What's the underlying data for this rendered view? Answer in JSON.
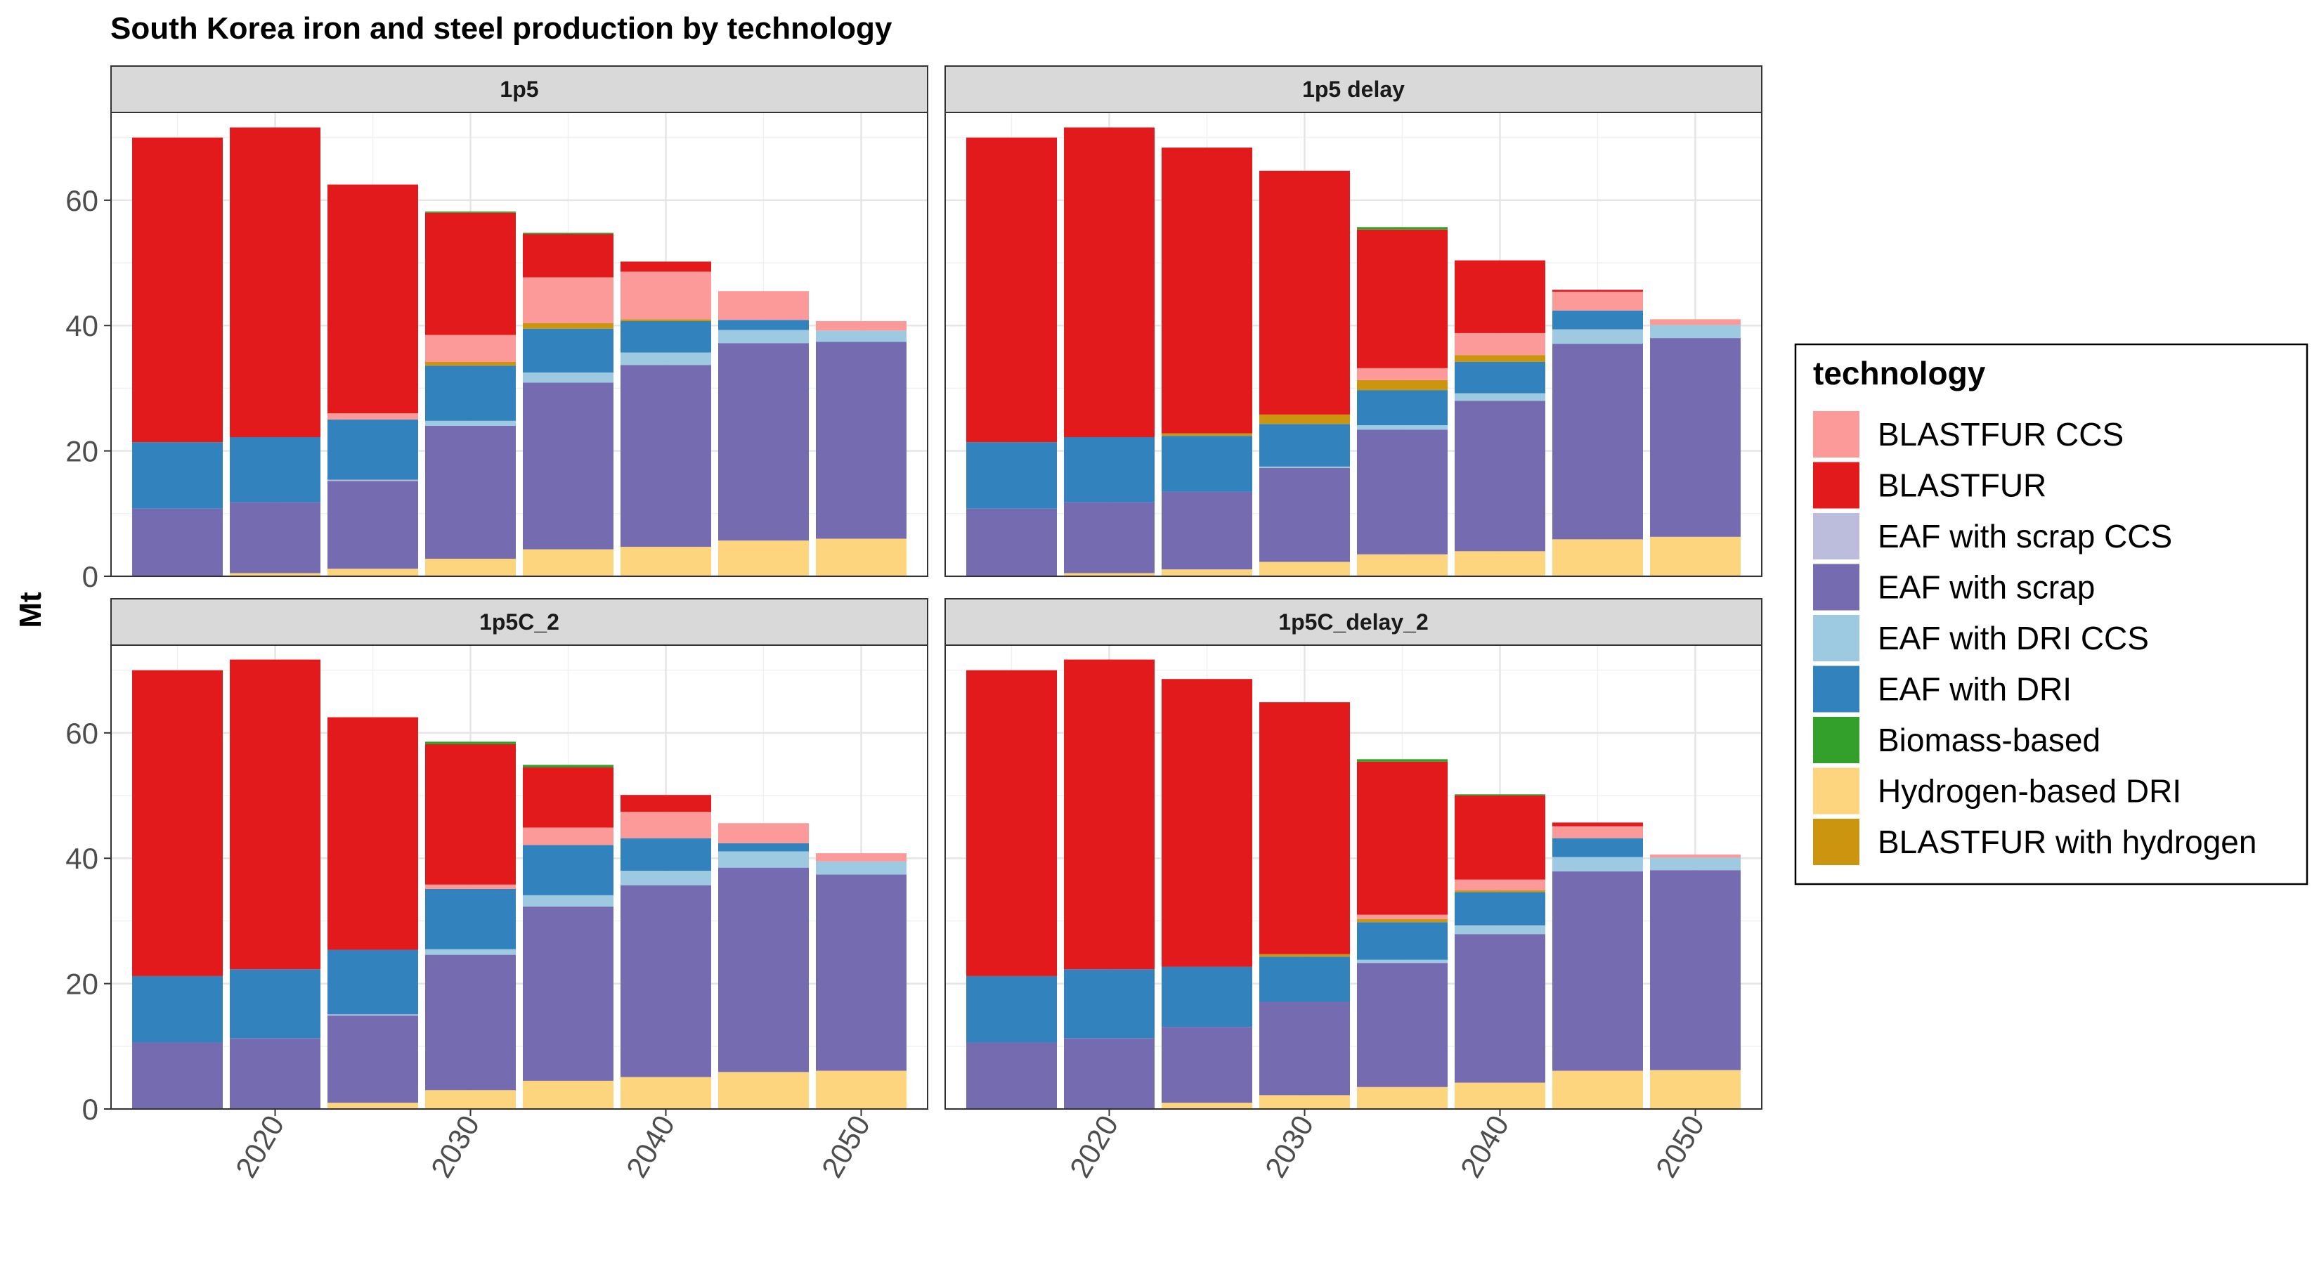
{
  "chart_data": {
    "type": "bar",
    "stacked": true,
    "title": "South Korea iron and steel production by technology",
    "xlabel": "",
    "ylabel": "Mt",
    "x": [
      2015,
      2020,
      2025,
      2030,
      2035,
      2040,
      2045,
      2050
    ],
    "x_ticks": [
      "2020",
      "2030",
      "2040",
      "2050"
    ],
    "y_ticks": [
      "0",
      "20",
      "40",
      "60"
    ],
    "ylim": [
      0,
      74
    ],
    "grid": true,
    "legend": {
      "title": "technology",
      "position": "right",
      "items": [
        {
          "name": "BLASTFUR CCS",
          "color": "#FB9A99"
        },
        {
          "name": "BLASTFUR",
          "color": "#E31A1C"
        },
        {
          "name": "EAF with scrap CCS",
          "color": "#BCBDDC"
        },
        {
          "name": "EAF with scrap",
          "color": "#756BB1"
        },
        {
          "name": "EAF with DRI CCS",
          "color": "#9ECAE1"
        },
        {
          "name": "EAF with DRI",
          "color": "#3182BD"
        },
        {
          "name": "Biomass-based",
          "color": "#33A02C"
        },
        {
          "name": "Hydrogen-based DRI",
          "color": "#FDD57E"
        },
        {
          "name": "BLASTFUR with hydrogen",
          "color": "#CC9510"
        }
      ]
    },
    "stack_order": [
      "Hydrogen-based DRI",
      "EAF with scrap",
      "EAF with scrap CCS",
      "EAF with DRI CCS",
      "EAF with DRI",
      "BLASTFUR with hydrogen",
      "BLASTFUR CCS",
      "BLASTFUR",
      "Biomass-based"
    ],
    "panels": [
      {
        "name": "1p5",
        "series": [
          {
            "name": "Hydrogen-based DRI",
            "values": [
              0,
              0.5,
              1.2,
              2.8,
              4.3,
              4.7,
              5.7,
              6.0
            ]
          },
          {
            "name": "EAF with scrap",
            "values": [
              10.8,
              11.3,
              14.0,
              21.2,
              26.6,
              29.0,
              31.5,
              31.4
            ]
          },
          {
            "name": "EAF with scrap CCS",
            "values": [
              0,
              0,
              0.2,
              0,
              0,
              0,
              0,
              0
            ]
          },
          {
            "name": "EAF with DRI CCS",
            "values": [
              0,
              0,
              0,
              0.8,
              1.6,
              2.0,
              2.1,
              1.8
            ]
          },
          {
            "name": "EAF with DRI",
            "values": [
              10.6,
              10.4,
              9.6,
              8.8,
              7.0,
              5.0,
              1.6,
              0
            ]
          },
          {
            "name": "BLASTFUR with hydrogen",
            "values": [
              0,
              0,
              0,
              0.6,
              0.9,
              0.3,
              0,
              0
            ]
          },
          {
            "name": "BLASTFUR CCS",
            "values": [
              0,
              0,
              1.0,
              4.3,
              7.3,
              7.6,
              4.6,
              1.5
            ]
          },
          {
            "name": "BLASTFUR",
            "values": [
              48.6,
              49.4,
              36.5,
              19.5,
              6.9,
              1.6,
              0,
              0
            ]
          },
          {
            "name": "Biomass-based",
            "values": [
              0,
              0,
              0,
              0.2,
              0.2,
              0,
              0,
              0
            ]
          }
        ]
      },
      {
        "name": "1p5 delay",
        "series": [
          {
            "name": "Hydrogen-based DRI",
            "values": [
              0,
              0.5,
              1.1,
              2.3,
              3.5,
              4.0,
              5.9,
              6.3
            ]
          },
          {
            "name": "EAF with scrap",
            "values": [
              10.8,
              11.3,
              12.4,
              15.0,
              19.9,
              24.0,
              31.2,
              31.7
            ]
          },
          {
            "name": "EAF with scrap CCS",
            "values": [
              0,
              0,
              0,
              0,
              0,
              0,
              0,
              0
            ]
          },
          {
            "name": "EAF with DRI CCS",
            "values": [
              0,
              0,
              0,
              0.2,
              0.7,
              1.2,
              2.3,
              2.1
            ]
          },
          {
            "name": "EAF with DRI",
            "values": [
              10.6,
              10.4,
              8.9,
              6.8,
              5.6,
              5.0,
              3.0,
              0
            ]
          },
          {
            "name": "BLASTFUR with hydrogen",
            "values": [
              0,
              0,
              0.4,
              1.5,
              1.6,
              1.1,
              0,
              0
            ]
          },
          {
            "name": "BLASTFUR CCS",
            "values": [
              0,
              0,
              0,
              0,
              1.9,
              3.5,
              3.0,
              0.9
            ]
          },
          {
            "name": "BLASTFUR",
            "values": [
              48.6,
              49.4,
              45.6,
              38.9,
              22.1,
              11.6,
              0.3,
              0
            ]
          },
          {
            "name": "Biomass-based",
            "values": [
              0,
              0,
              0,
              0,
              0.4,
              0,
              0,
              0
            ]
          }
        ]
      },
      {
        "name": "1p5C_2",
        "series": [
          {
            "name": "Hydrogen-based DRI",
            "values": [
              0,
              0,
              1.0,
              3.0,
              4.5,
              5.1,
              5.9,
              6.1
            ]
          },
          {
            "name": "EAF with scrap",
            "values": [
              10.6,
              11.3,
              13.9,
              21.6,
              27.8,
              30.6,
              32.6,
              31.3
            ]
          },
          {
            "name": "EAF with scrap CCS",
            "values": [
              0,
              0,
              0.2,
              0,
              0,
              0,
              0,
              0
            ]
          },
          {
            "name": "EAF with DRI CCS",
            "values": [
              0,
              0,
              0,
              0.9,
              1.8,
              2.3,
              2.6,
              2.1
            ]
          },
          {
            "name": "EAF with DRI",
            "values": [
              10.6,
              11.0,
              10.3,
              9.6,
              8.0,
              5.2,
              1.3,
              0
            ]
          },
          {
            "name": "BLASTFUR with hydrogen",
            "values": [
              0,
              0,
              0,
              0,
              0,
              0,
              0,
              0
            ]
          },
          {
            "name": "BLASTFUR CCS",
            "values": [
              0,
              0,
              0,
              0.7,
              2.8,
              4.2,
              3.2,
              1.3
            ]
          },
          {
            "name": "BLASTFUR",
            "values": [
              48.8,
              49.4,
              37.1,
              22.4,
              9.6,
              2.7,
              0,
              0
            ]
          },
          {
            "name": "Biomass-based",
            "values": [
              0,
              0,
              0,
              0.4,
              0.4,
              0,
              0,
              0
            ]
          }
        ]
      },
      {
        "name": "1p5C_delay_2",
        "series": [
          {
            "name": "Hydrogen-based DRI",
            "values": [
              0,
              0,
              1.0,
              2.2,
              3.5,
              4.2,
              6.1,
              6.2
            ]
          },
          {
            "name": "EAF with scrap",
            "values": [
              10.6,
              11.3,
              12.1,
              14.9,
              19.8,
              23.7,
              31.8,
              31.9
            ]
          },
          {
            "name": "EAF with scrap CCS",
            "values": [
              0,
              0,
              0,
              0,
              0,
              0,
              0,
              0
            ]
          },
          {
            "name": "EAF with DRI CCS",
            "values": [
              0,
              0,
              0,
              0,
              0.5,
              1.4,
              2.3,
              2.0
            ]
          },
          {
            "name": "EAF with DRI",
            "values": [
              10.6,
              11.0,
              9.6,
              7.2,
              6.0,
              5.3,
              3.0,
              0
            ]
          },
          {
            "name": "BLASTFUR with hydrogen",
            "values": [
              0,
              0,
              0,
              0.4,
              0.5,
              0.3,
              0,
              0
            ]
          },
          {
            "name": "BLASTFUR CCS",
            "values": [
              0,
              0,
              0,
              0,
              0.7,
              1.7,
              1.9,
              0.5
            ]
          },
          {
            "name": "BLASTFUR",
            "values": [
              48.8,
              49.4,
              45.9,
              40.2,
              24.4,
              13.4,
              0.6,
              0
            ]
          },
          {
            "name": "Biomass-based",
            "values": [
              0,
              0,
              0,
              0,
              0.4,
              0.2,
              0,
              0
            ]
          }
        ]
      }
    ]
  }
}
